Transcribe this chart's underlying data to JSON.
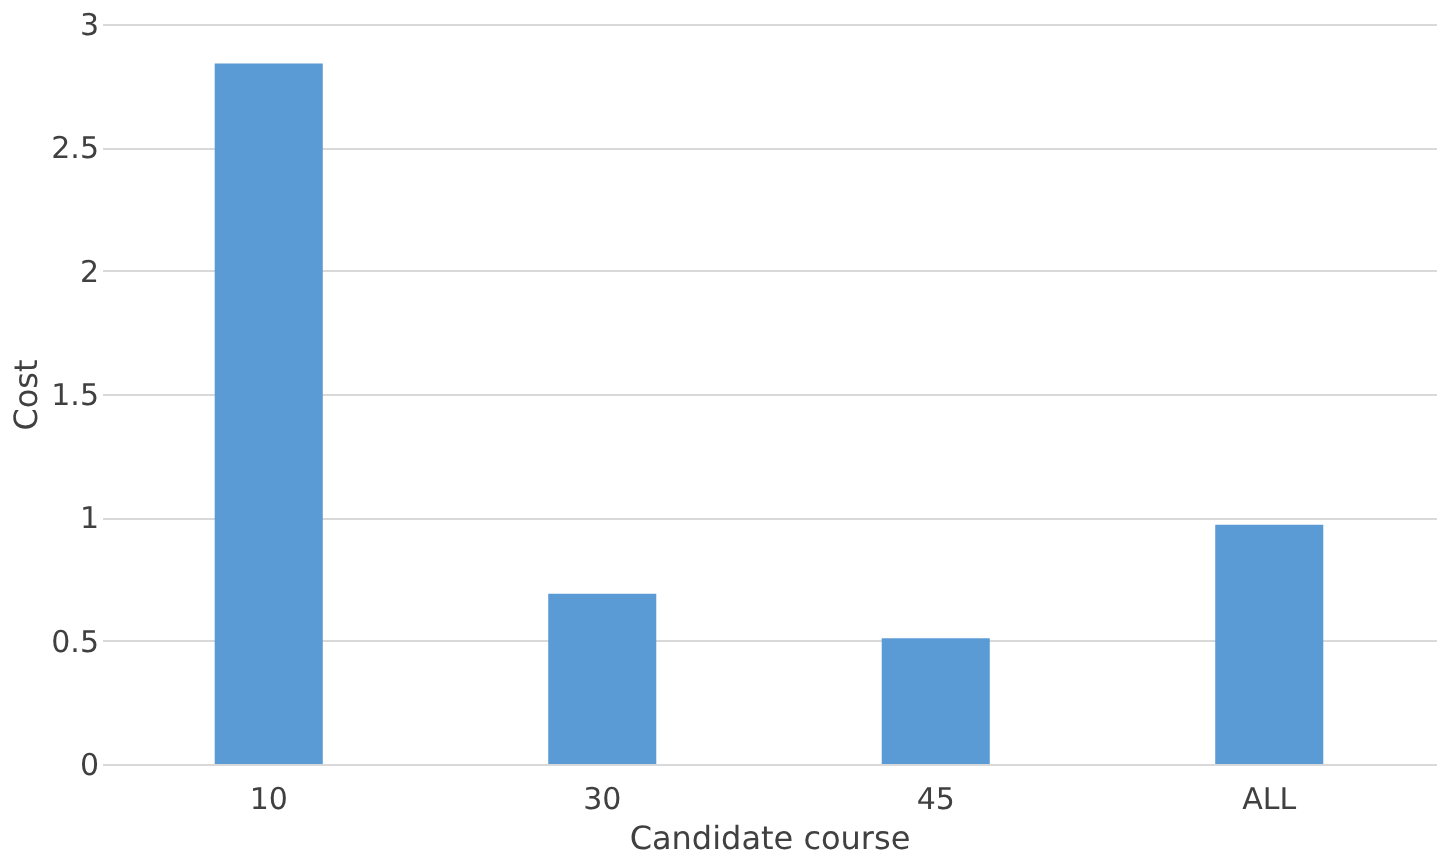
{
  "chart_data": {
    "type": "bar",
    "xlabel": "Candidate course",
    "ylabel": "Cost",
    "categories": [
      "10",
      "30",
      "45",
      "ALL"
    ],
    "values": [
      2.84,
      0.69,
      0.51,
      0.97
    ],
    "color": "#5b9bd5",
    "ylim": [
      0,
      3
    ],
    "yticks": [
      0,
      0.5,
      1,
      1.5,
      2,
      2.5,
      3
    ],
    "grid": "y"
  }
}
